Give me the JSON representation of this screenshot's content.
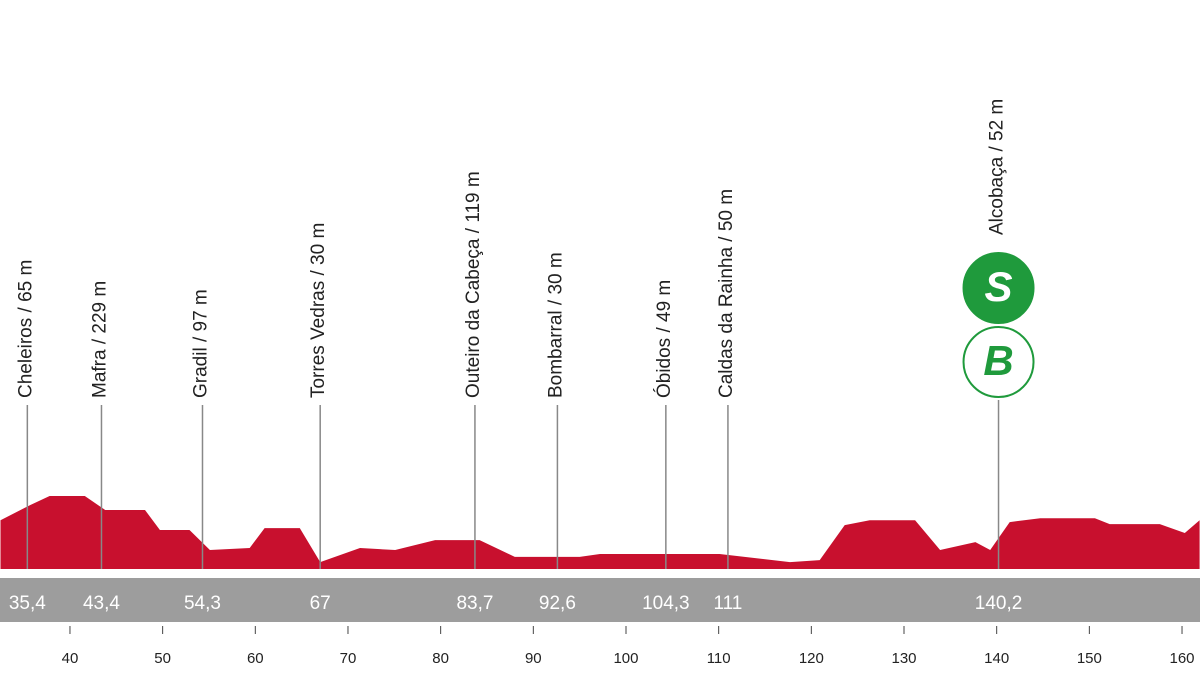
{
  "chart_data": {
    "type": "profile",
    "color": "#c8102e",
    "xlim": [
      32.45,
      161.94
    ],
    "ylim": [
      0,
      300
    ],
    "xticks": [
      40,
      50,
      60,
      70,
      80,
      90,
      100,
      110,
      120,
      130,
      140,
      150,
      160
    ],
    "x": [
      32.5,
      35.7,
      37.8,
      41.6,
      43.8,
      48.1,
      49.7,
      52.9,
      55.1,
      59.4,
      61.0,
      64.8,
      67.0,
      71.3,
      75.1,
      79.4,
      84.2,
      88.0,
      95.0,
      97.2,
      110.1,
      117.7,
      120.9,
      123.6,
      126.3,
      131.2,
      133.9,
      137.7,
      139.3,
      141.4,
      144.7,
      150.6,
      152.2,
      157.6,
      160.3,
      161.9
    ],
    "values": [
      198,
      259,
      296,
      296,
      239,
      239,
      158,
      158,
      77,
      85,
      166,
      166,
      28,
      85,
      77,
      117,
      117,
      49,
      49,
      61,
      61,
      28,
      36,
      178,
      198,
      198,
      77,
      109,
      77,
      190,
      206,
      206,
      182,
      182,
      146,
      198
    ],
    "waypoints": [
      {
        "name": "Cheleiros / 65 m",
        "km": 35.4,
        "km_label": "35,4"
      },
      {
        "name": "Mafra / 229 m",
        "km": 43.4,
        "km_label": "43,4"
      },
      {
        "name": "Gradil / 97 m",
        "km": 54.3,
        "km_label": "54,3"
      },
      {
        "name": "Torres Vedras / 30 m",
        "km": 67,
        "km_label": "67"
      },
      {
        "name": "Outeiro da Cabeça / 119 m",
        "km": 83.7,
        "km_label": "83,7"
      },
      {
        "name": "Bombarral / 30 m",
        "km": 92.6,
        "km_label": "92,6"
      },
      {
        "name": "Óbidos / 49 m",
        "km": 104.3,
        "km_label": "104,3"
      },
      {
        "name": "Caldas da Rainha / 50 m",
        "km": 111,
        "km_label": "111"
      },
      {
        "name": "Alcobaça / 52 m",
        "km": 140.2,
        "km_label": "140,2",
        "badges": [
          "S",
          "B"
        ]
      }
    ]
  }
}
